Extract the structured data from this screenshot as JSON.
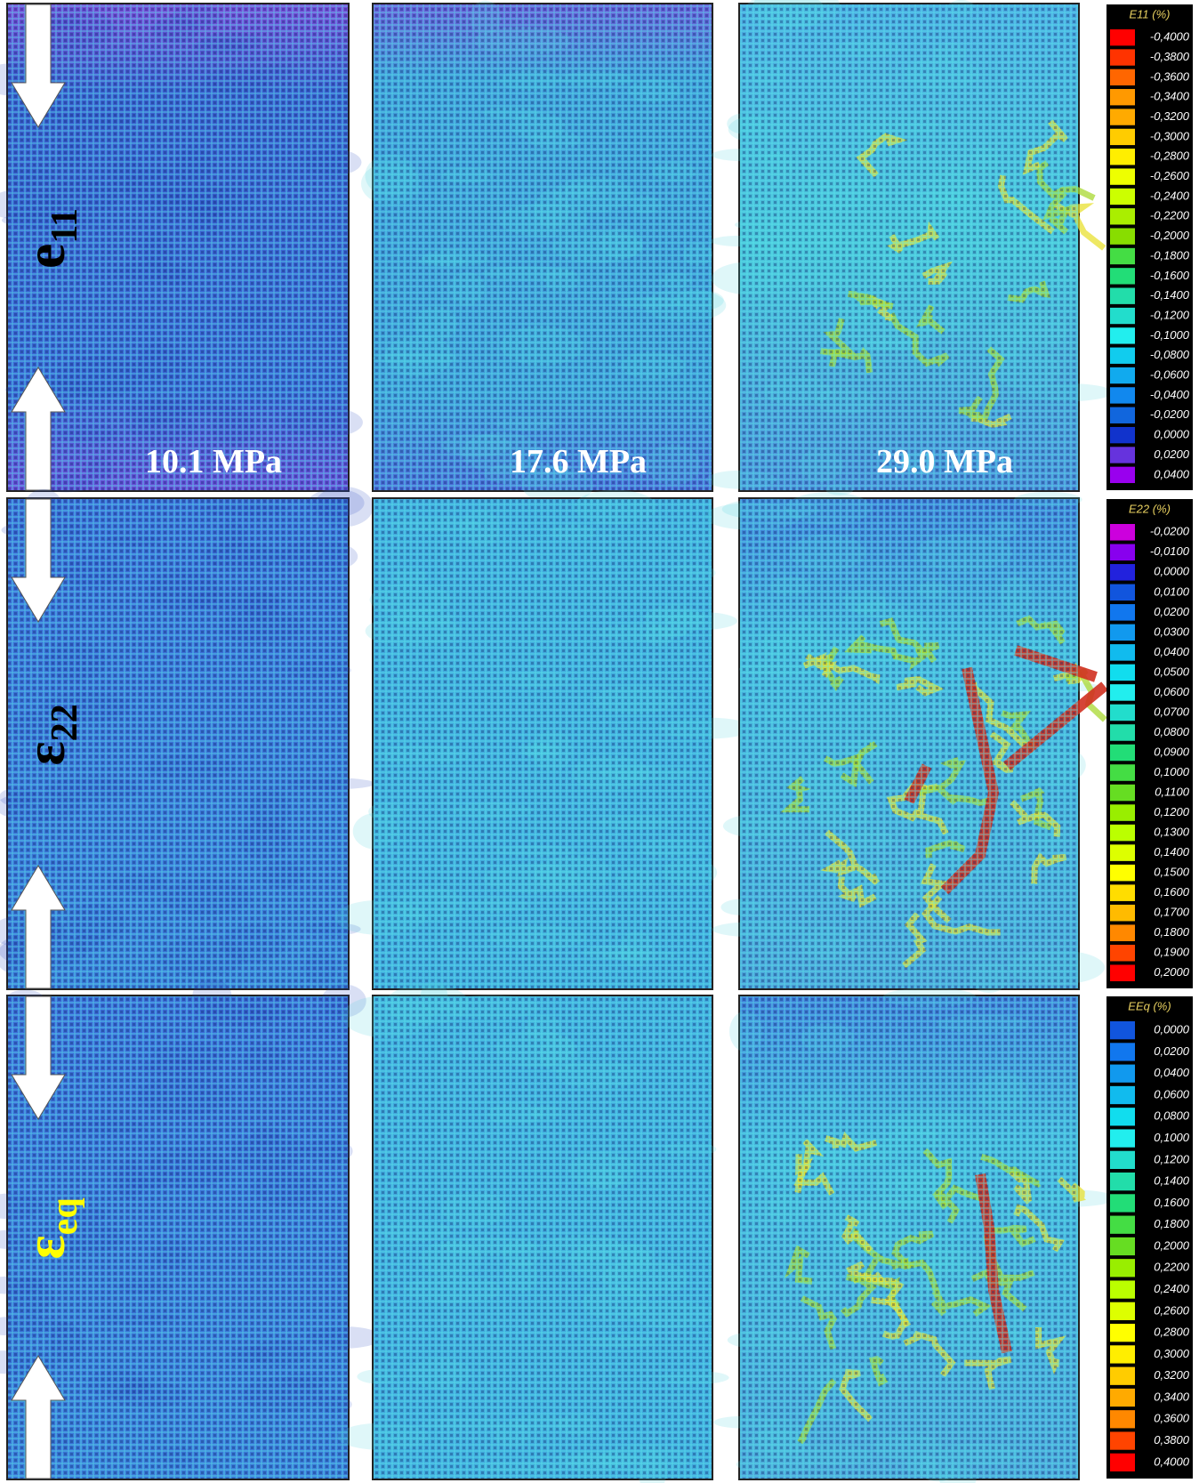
{
  "stress_labels": [
    "10.1 MPa",
    "17.6 MPa",
    "29.0 MPa"
  ],
  "rows": [
    {
      "symbol": "e",
      "subscript": "11",
      "label_color": "#000000",
      "colorbar": {
        "title": "E11 (%)",
        "labels": [
          "-0,4000",
          "-0,3800",
          "-0,3600",
          "-0,3400",
          "-0,3200",
          "-0,3000",
          "-0,2800",
          "-0,2600",
          "-0,2400",
          "-0,2200",
          "-0,2000",
          "-0,1800",
          "-0,1600",
          "-0,1400",
          "-0,1200",
          "-0,1000",
          "-0,0800",
          "-0,0600",
          "-0,0400",
          "-0,0200",
          "0,0000",
          "0,0200",
          "0,0400"
        ],
        "colors": [
          "#ff0000",
          "#ff3300",
          "#ff6600",
          "#ff9900",
          "#ffaa00",
          "#ffcc00",
          "#ffee00",
          "#eeff00",
          "#ccff00",
          "#aaee00",
          "#88dd00",
          "#44dd44",
          "#22dd77",
          "#22ddaa",
          "#22ddcc",
          "#22eeee",
          "#11ccee",
          "#11aaee",
          "#1188ee",
          "#1166dd",
          "#1133cc",
          "#6633dd",
          "#9900ee"
        ]
      }
    },
    {
      "symbol": "ε",
      "subscript": "22",
      "label_color": "#000000",
      "colorbar": {
        "title": "E22 (%)",
        "labels": [
          "-0,0200",
          "-0,0100",
          "0,0000",
          "0,0100",
          "0,0200",
          "0,0300",
          "0,0400",
          "0,0500",
          "0,0600",
          "0,0700",
          "0,0800",
          "0,0900",
          "0,1000",
          "0,1100",
          "0,1200",
          "0,1300",
          "0,1400",
          "0,1500",
          "0,1600",
          "0,1700",
          "0,1800",
          "0,1900",
          "0,2000"
        ],
        "colors": [
          "#cc00dd",
          "#8800ee",
          "#2222dd",
          "#1155dd",
          "#1177ee",
          "#1199ee",
          "#11bbee",
          "#11ddee",
          "#22eeee",
          "#22ddcc",
          "#22ddaa",
          "#22dd77",
          "#44dd44",
          "#66dd22",
          "#99ee00",
          "#bbff00",
          "#ddff00",
          "#ffff00",
          "#ffdd00",
          "#ffbb00",
          "#ff8800",
          "#ff4400",
          "#ff0000"
        ]
      }
    },
    {
      "symbol": "ε",
      "subscript": "eq",
      "label_color": "#ffff00",
      "colorbar": {
        "title": "EEq (%)",
        "labels": [
          "0,0000",
          "0,0200",
          "0,0400",
          "0,0600",
          "0,0800",
          "0,1000",
          "0,1200",
          "0,1400",
          "0,1600",
          "0,1800",
          "0,2000",
          "0,2200",
          "0,2400",
          "0,2600",
          "0,2800",
          "0,3000",
          "0,3200",
          "0,3400",
          "0,3600",
          "0,3800",
          "0,4000"
        ],
        "colors": [
          "#1155dd",
          "#1177ee",
          "#1199ee",
          "#11bbee",
          "#11ddee",
          "#22eeee",
          "#22ddcc",
          "#22ddaa",
          "#22dd77",
          "#44dd44",
          "#66dd22",
          "#99ee00",
          "#bbff00",
          "#ddff00",
          "#ffff00",
          "#ffee00",
          "#ffcc00",
          "#ffaa00",
          "#ff8800",
          "#ff4400",
          "#ff0000"
        ]
      }
    }
  ]
}
